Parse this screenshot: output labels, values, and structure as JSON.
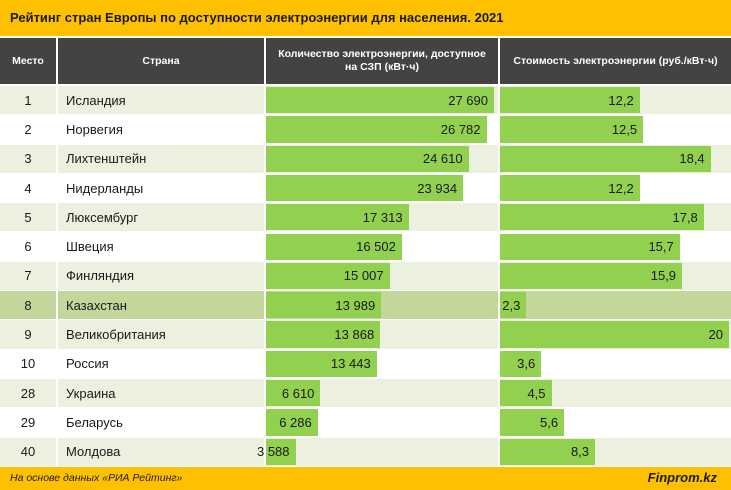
{
  "colors": {
    "header_band": "#ffc000",
    "column_header": "#434343",
    "bar": "#92d050",
    "row_alt": "#ebf1de",
    "row_highlight": "#c4d79b"
  },
  "chart_data": {
    "type": "table",
    "title": "Рейтинг стран Европы по доступности электроэнергии для населения. 2021",
    "columns": [
      "Место",
      "Страна",
      "Количество электроэнергии, доступное на СЗП (кВт·ч)",
      "Стоимость электроэнергии (руб./кВт·ч)"
    ],
    "rows": [
      {
        "place": "1",
        "country": "Исландия",
        "kwh": 27690,
        "kwh_label": "27 690",
        "price": 12.2,
        "price_label": "12,2",
        "highlight": false
      },
      {
        "place": "2",
        "country": "Норвегия",
        "kwh": 26782,
        "kwh_label": "26 782",
        "price": 12.5,
        "price_label": "12,5",
        "highlight": false
      },
      {
        "place": "3",
        "country": "Лихтенштейн",
        "kwh": 24610,
        "kwh_label": "24 610",
        "price": 18.4,
        "price_label": "18,4",
        "highlight": false
      },
      {
        "place": "4",
        "country": "Нидерланды",
        "kwh": 23934,
        "kwh_label": "23 934",
        "price": 12.2,
        "price_label": "12,2",
        "highlight": false
      },
      {
        "place": "5",
        "country": "Люксембург",
        "kwh": 17313,
        "kwh_label": "17 313",
        "price": 17.8,
        "price_label": "17,8",
        "highlight": false
      },
      {
        "place": "6",
        "country": "Швеция",
        "kwh": 16502,
        "kwh_label": "16 502",
        "price": 15.7,
        "price_label": "15,7",
        "highlight": false
      },
      {
        "place": "7",
        "country": "Финляндия",
        "kwh": 15007,
        "kwh_label": "15 007",
        "price": 15.9,
        "price_label": "15,9",
        "highlight": false
      },
      {
        "place": "8",
        "country": "Казахстан",
        "kwh": 13989,
        "kwh_label": "13 989",
        "price": 2.3,
        "price_label": "2,3",
        "highlight": true
      },
      {
        "place": "9",
        "country": "Великобритания",
        "kwh": 13868,
        "kwh_label": "13 868",
        "price": 20,
        "price_label": "20",
        "highlight": false
      },
      {
        "place": "10",
        "country": "Россия",
        "kwh": 13443,
        "kwh_label": "13 443",
        "price": 3.6,
        "price_label": "3,6",
        "highlight": false
      },
      {
        "place": "28",
        "country": "Украина",
        "kwh": 6610,
        "kwh_label": "6 610",
        "price": 4.5,
        "price_label": "4,5",
        "highlight": false
      },
      {
        "place": "29",
        "country": "Беларусь",
        "kwh": 6286,
        "kwh_label": "6 286",
        "price": 5.6,
        "price_label": "5,6",
        "highlight": false
      },
      {
        "place": "40",
        "country": "Молдова",
        "kwh": 3588,
        "kwh_label": "3 588",
        "price": 8.3,
        "price_label": "8,3",
        "highlight": false
      }
    ]
  },
  "footer": {
    "source": "На основе данных «РИА Рейтинг»",
    "brand": "Finprom.kz"
  }
}
